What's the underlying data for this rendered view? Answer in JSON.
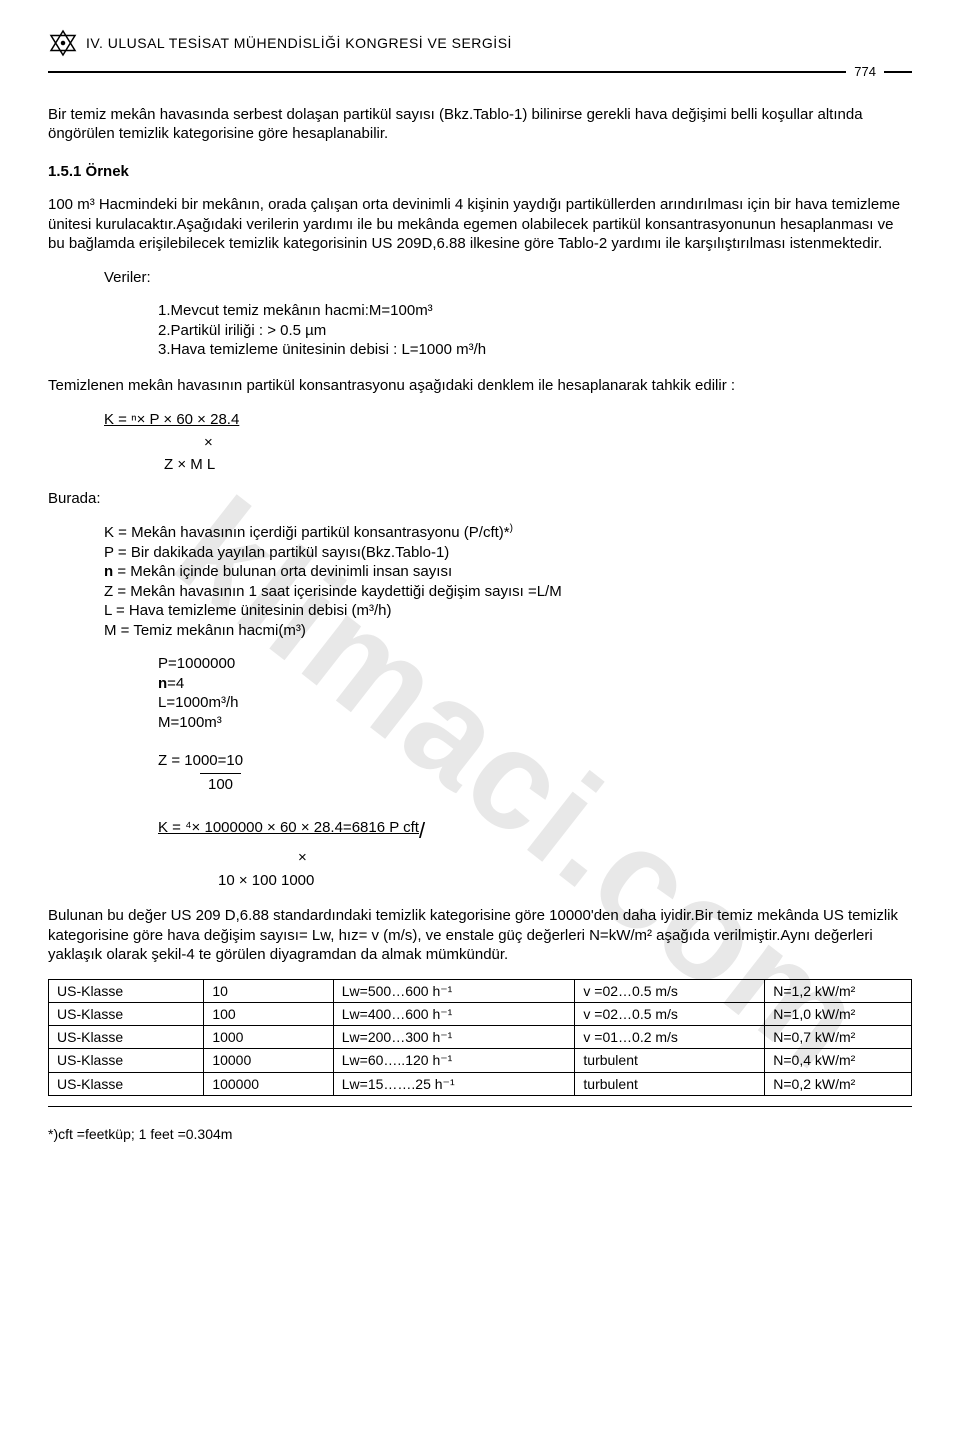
{
  "header": {
    "congress_title": "IV. ULUSAL TESİSAT MÜHENDİSLİĞİ KONGRESİ VE SERGİSİ",
    "page_number": "774"
  },
  "watermark_text": "klimaci.com",
  "para1": "Bir temiz mekân havasında serbest dolaşan partikül sayısı (Bkz.Tablo-1) bilinirse gerekli hava değişimi belli koşullar altında öngörülen temizlik kategorisine göre hesaplanabilir.",
  "section_1_5_1": "1.5.1 Örnek",
  "ornek_para": "100 m³ Hacmindeki bir mekânın, orada çalışan orta devinimli 4 kişinin yaydığı partiküllerden arındırılması için bir hava temizleme ünitesi kurulacaktır.Aşağıdaki verilerin yardımı ile bu mekânda egemen olabilecek partikül konsantrasyonunun hesaplanması ve bu bağlamda erişilebilecek temizlik kategorisinin US 209D,6.88 ilkesine göre Tablo-2 yardımı ile karşılıştırılması istenmektedir.",
  "veriler_label": "Veriler:",
  "veriler": {
    "v1": "1.Mevcut temiz mekânın hacmi:M=100m³",
    "v2": "2.Partikül iriliği : > 0.5 µm",
    "v3": "3.Hava temizleme ünitesinin debisi : L=1000 m³/h"
  },
  "temizlenen_para": "Temizlenen mekân havasının partikül konsantrasyonu aşağıdaki denklem ile hesaplanarak tahkik edilir :",
  "formula_k_num": "K = ⁿ× P × 60 × 28.4",
  "formula_k_mid": "×",
  "formula_k_den": "Z × M  L",
  "burada_label": "Burada:",
  "definitions": {
    "d1": "K = Mekân havasının içerdiği partikül konsantrasyonu (P/cft)*",
    "d1_sup": ")",
    "d2": "P = Bir dakikada yayılan partikül sayısı(Bkz.Tablo-1)",
    "d3_pre": "n",
    "d3": " = Mekân içinde bulunan orta devinimli insan sayısı",
    "d4": "Z = Mekân havasının 1 saat içerisinde kaydettiği değişim sayısı =L/M",
    "d5": "L = Hava temizleme ünitesinin debisi (m³/h)",
    "d6": "M = Temiz mekânın hacmi(m³)"
  },
  "params": {
    "p1": "P=1000000",
    "p2_pre": "n",
    "p2": "=4",
    "p3": "L=1000m³/h",
    "p4": "M=100m³"
  },
  "z_formula_num": "Z = 1000=10",
  "z_formula_den": "100",
  "k2_formula_num": "K = ⁴× 1000000 × 60 × 28.4=6816 P cft",
  "k2_slash": "/",
  "k2_mid": "×",
  "k2_den": "10 × 100  1000",
  "bulunan_para": "Bulunan bu değer US 209 D,6.88 standardındaki temizlik kategorisine göre 10000'den daha iyidir.Bir temiz mekânda US temizlik kategorisine göre hava değişim sayısı= Lw, hız= v   (m/s), ve enstale güç değerleri N=kW/m² aşağıda verilmiştir.Aynı değerleri yaklaşık olarak şekil-4 te görülen diyagramdan da almak mümkündür.",
  "table": {
    "rows": [
      [
        "US-Klasse",
        "10",
        "Lw=500…600 h⁻¹",
        "v =02…0.5 m/s",
        "N=1,2 kW/m²"
      ],
      [
        "US-Klasse",
        "100",
        "Lw=400…600 h⁻¹",
        "v =02…0.5 m/s",
        "N=1,0 kW/m²"
      ],
      [
        "US-Klasse",
        "1000",
        "Lw=200…300 h⁻¹",
        "v =01…0.2 m/s",
        "N=0,7 kW/m²"
      ],
      [
        "US-Klasse",
        "10000",
        "Lw=60…..120 h⁻¹",
        "turbulent",
        "N=0,4 kW/m²"
      ],
      [
        "US-Klasse",
        "100000",
        "Lw=15…….25 h⁻¹",
        "turbulent",
        "N=0,2 kW/m²"
      ]
    ],
    "col_widths": [
      "18%",
      "15%",
      "28%",
      "22%",
      "17%"
    ]
  },
  "footnote": "*)cft =feetküp; 1 feet =0.304m"
}
